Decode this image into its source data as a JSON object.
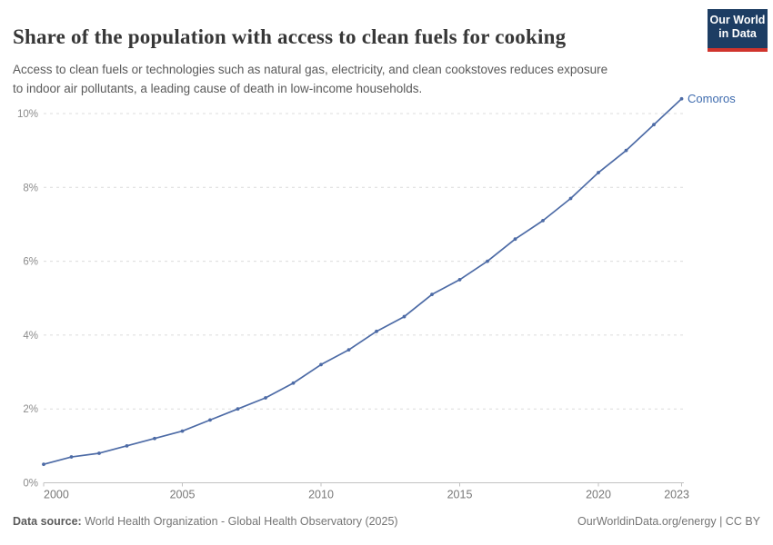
{
  "header": {
    "title": "Share of the population with access to clean fuels for cooking",
    "subtitle_lines": [
      "Access to clean fuels or technologies such as natural gas, electricity, and clean cookstoves reduces exposure",
      "to indoor air pollutants, a leading cause of death in low-income households."
    ],
    "logo": {
      "line1": "Our World",
      "line2": "in Data"
    }
  },
  "chart_data": {
    "type": "line",
    "title": "Share of the population with access to clean fuels for cooking",
    "xlabel": "",
    "ylabel": "",
    "x": [
      2000,
      2001,
      2002,
      2003,
      2004,
      2005,
      2006,
      2007,
      2008,
      2009,
      2010,
      2011,
      2012,
      2013,
      2014,
      2015,
      2016,
      2017,
      2018,
      2019,
      2020,
      2021,
      2022,
      2023
    ],
    "series": [
      {
        "name": "Comoros",
        "values": [
          0.5,
          0.7,
          0.8,
          1.0,
          1.2,
          1.4,
          1.7,
          2.0,
          2.3,
          2.7,
          3.2,
          3.6,
          4.1,
          4.5,
          5.1,
          5.5,
          6.0,
          6.6,
          7.1,
          7.7,
          8.4,
          9.0,
          9.7,
          10.4
        ]
      }
    ],
    "xlim": [
      2000,
      2023
    ],
    "ylim": [
      0,
      10.5
    ],
    "x_ticks": [
      2000,
      2005,
      2010,
      2015,
      2020,
      2023
    ],
    "y_ticks": [
      0,
      2,
      4,
      6,
      8,
      10
    ],
    "y_tick_labels": [
      "0%",
      "2%",
      "4%",
      "6%",
      "8%",
      "10%"
    ],
    "grid": "horizontal dashed",
    "legend": "end-of-line entity label"
  },
  "footer": {
    "source_label": "Data source:",
    "source_text": " World Health Organization - Global Health Observatory (2025)",
    "license": "OurWorldinData.org/energy | CC BY"
  },
  "colors": {
    "line": "#4d6ba6",
    "marker": "#4d6ba6",
    "entity_label": "#3e6bae",
    "grid": "#dcdcdc",
    "axis": "#c2c2c2",
    "y_tick_text": "#8c8c8c",
    "x_tick_text": "#787878",
    "logo_bg": "#1d3d63",
    "logo_bar": "#d0342c"
  }
}
